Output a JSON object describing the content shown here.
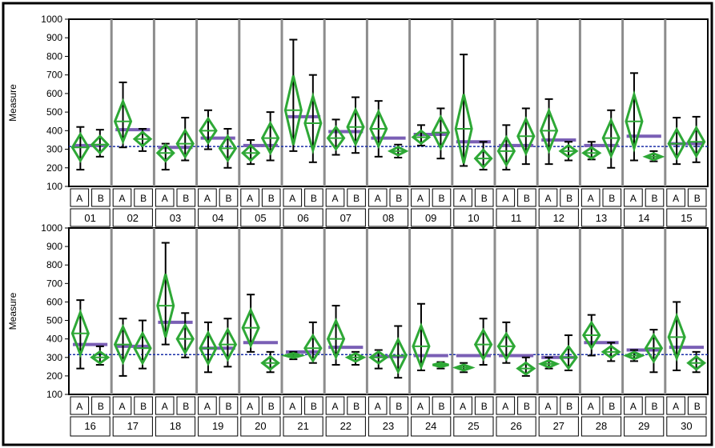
{
  "chart_data": {
    "type": "diamond-variability",
    "ylabel": "Measure",
    "ylim": [
      100,
      1000
    ],
    "yticks": [
      100,
      200,
      300,
      400,
      500,
      600,
      700,
      800,
      900,
      1000
    ],
    "grand_mean": 315,
    "subgroups": [
      "A",
      "B"
    ],
    "colors": {
      "diamond": "#2ea836",
      "group_mean": "#7a5fb5",
      "grand_mean": "#1a2fa8",
      "range": "#000000",
      "separator": "#8c8c8c"
    },
    "panels": [
      {
        "groups": [
          {
            "label": "01",
            "mean": 320,
            "A": {
              "mean": 310,
              "min": 190,
              "max": 420
            },
            "B": {
              "mean": 325,
              "min": 260,
              "max": 405
            }
          },
          {
            "label": "02",
            "mean": 405,
            "A": {
              "mean": 450,
              "min": 310,
              "max": 660
            },
            "B": {
              "mean": 355,
              "min": 290,
              "max": 410
            }
          },
          {
            "label": "03",
            "mean": 310,
            "A": {
              "mean": 280,
              "min": 190,
              "max": 330
            },
            "B": {
              "mean": 330,
              "min": 240,
              "max": 470
            }
          },
          {
            "label": "04",
            "mean": 360,
            "A": {
              "mean": 400,
              "min": 300,
              "max": 510
            },
            "B": {
              "mean": 305,
              "min": 200,
              "max": 410
            }
          },
          {
            "label": "05",
            "mean": 320,
            "A": {
              "mean": 280,
              "min": 220,
              "max": 350
            },
            "B": {
              "mean": 360,
              "min": 240,
              "max": 500
            }
          },
          {
            "label": "06",
            "mean": 475,
            "A": {
              "mean": 510,
              "min": 290,
              "max": 890
            },
            "B": {
              "mean": 440,
              "min": 230,
              "max": 700
            }
          },
          {
            "label": "07",
            "mean": 395,
            "A": {
              "mean": 360,
              "min": 270,
              "max": 460
            },
            "B": {
              "mean": 420,
              "min": 280,
              "max": 580
            }
          },
          {
            "label": "08",
            "mean": 360,
            "A": {
              "mean": 410,
              "min": 260,
              "max": 560
            },
            "B": {
              "mean": 290,
              "min": 255,
              "max": 325
            }
          },
          {
            "label": "09",
            "mean": 380,
            "A": {
              "mean": 365,
              "min": 320,
              "max": 430
            },
            "B": {
              "mean": 390,
              "min": 250,
              "max": 520
            }
          },
          {
            "label": "10",
            "mean": 340,
            "A": {
              "mean": 410,
              "min": 210,
              "max": 810
            },
            "B": {
              "mean": 250,
              "min": 190,
              "max": 340
            }
          },
          {
            "label": "11",
            "mean": 320,
            "A": {
              "mean": 290,
              "min": 190,
              "max": 430
            },
            "B": {
              "mean": 370,
              "min": 220,
              "max": 520
            }
          },
          {
            "label": "12",
            "mean": 350,
            "A": {
              "mean": 400,
              "min": 220,
              "max": 570
            },
            "B": {
              "mean": 290,
              "min": 240,
              "max": 340
            }
          },
          {
            "label": "13",
            "mean": 320,
            "A": {
              "mean": 280,
              "min": 245,
              "max": 340
            },
            "B": {
              "mean": 360,
              "min": 200,
              "max": 510
            }
          },
          {
            "label": "14",
            "mean": 370,
            "A": {
              "mean": 450,
              "min": 240,
              "max": 710
            },
            "B": {
              "mean": 260,
              "min": 235,
              "max": 290
            }
          },
          {
            "label": "15",
            "mean": 330,
            "A": {
              "mean": 330,
              "min": 220,
              "max": 470
            },
            "B": {
              "mean": 340,
              "min": 230,
              "max": 475
            }
          }
        ]
      },
      {
        "groups": [
          {
            "label": "16",
            "mean": 370,
            "A": {
              "mean": 430,
              "min": 240,
              "max": 610
            },
            "B": {
              "mean": 300,
              "min": 260,
              "max": 360
            }
          },
          {
            "label": "17",
            "mean": 360,
            "A": {
              "mean": 370,
              "min": 200,
              "max": 510
            },
            "B": {
              "mean": 350,
              "min": 240,
              "max": 500
            }
          },
          {
            "label": "18",
            "mean": 490,
            "A": {
              "mean": 580,
              "min": 370,
              "max": 920
            },
            "B": {
              "mean": 400,
              "min": 300,
              "max": 540
            }
          },
          {
            "label": "19",
            "mean": 350,
            "A": {
              "mean": 350,
              "min": 220,
              "max": 490
            },
            "B": {
              "mean": 370,
              "min": 250,
              "max": 510
            }
          },
          {
            "label": "20",
            "mean": 380,
            "A": {
              "mean": 460,
              "min": 330,
              "max": 640
            },
            "B": {
              "mean": 270,
              "min": 220,
              "max": 330
            }
          },
          {
            "label": "21",
            "mean": 330,
            "A": {
              "mean": 310,
              "min": 290,
              "max": 330
            },
            "B": {
              "mean": 350,
              "min": 270,
              "max": 490
            }
          },
          {
            "label": "22",
            "mean": 355,
            "A": {
              "mean": 400,
              "min": 260,
              "max": 580
            },
            "B": {
              "mean": 300,
              "min": 260,
              "max": 330
            }
          },
          {
            "label": "23",
            "mean": 305,
            "A": {
              "mean": 300,
              "min": 240,
              "max": 340
            },
            "B": {
              "mean": 310,
              "min": 190,
              "max": 470
            }
          },
          {
            "label": "24",
            "mean": 310,
            "A": {
              "mean": 360,
              "min": 230,
              "max": 590
            },
            "B": {
              "mean": 260,
              "min": 240,
              "max": 275
            }
          },
          {
            "label": "25",
            "mean": 310,
            "A": {
              "mean": 245,
              "min": 220,
              "max": 270
            },
            "B": {
              "mean": 370,
              "min": 260,
              "max": 510
            }
          },
          {
            "label": "26",
            "mean": 310,
            "A": {
              "mean": 360,
              "min": 270,
              "max": 490
            },
            "B": {
              "mean": 240,
              "min": 200,
              "max": 300
            }
          },
          {
            "label": "27",
            "mean": 300,
            "A": {
              "mean": 265,
              "min": 240,
              "max": 300
            },
            "B": {
              "mean": 300,
              "min": 230,
              "max": 420
            }
          },
          {
            "label": "28",
            "mean": 380,
            "A": {
              "mean": 420,
              "min": 310,
              "max": 530
            },
            "B": {
              "mean": 330,
              "min": 280,
              "max": 380
            }
          },
          {
            "label": "29",
            "mean": 340,
            "A": {
              "mean": 310,
              "min": 280,
              "max": 340
            },
            "B": {
              "mean": 350,
              "min": 220,
              "max": 450
            }
          },
          {
            "label": "30",
            "mean": 355,
            "A": {
              "mean": 410,
              "min": 230,
              "max": 600
            },
            "B": {
              "mean": 270,
              "min": 220,
              "max": 330
            }
          }
        ]
      }
    ]
  }
}
